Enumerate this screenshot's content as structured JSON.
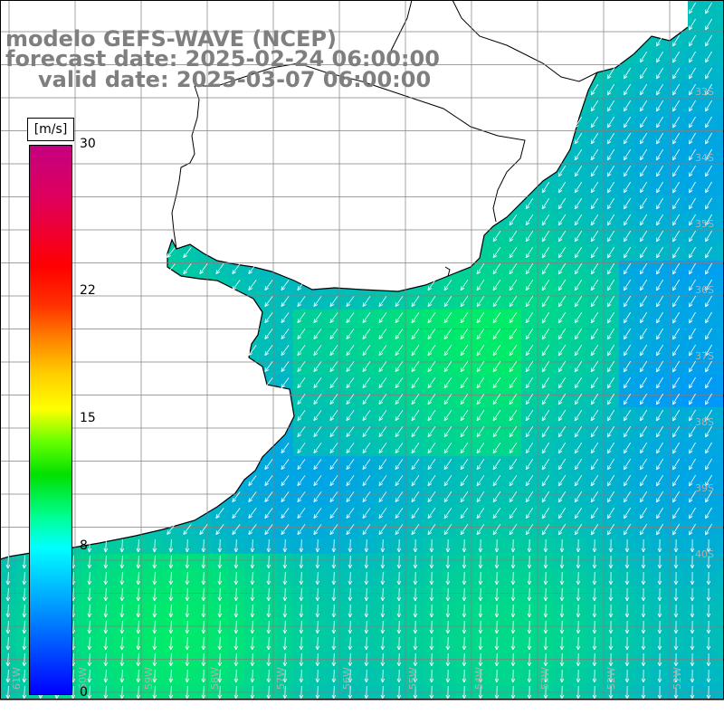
{
  "title": {
    "line1": "modelo GEFS-WAVE (NCEP)",
    "line2": "forecast date: 2025-02-24 06:00:00",
    "line3": "valid date: 2025-03-07 06:00:00"
  },
  "colorbar": {
    "units": "[m/s]",
    "ticks": [
      {
        "value": 30,
        "label": "30"
      },
      {
        "value": 22,
        "label": "22"
      },
      {
        "value": 15,
        "label": "15"
      },
      {
        "value": 8,
        "label": "8"
      },
      {
        "value": 0,
        "label": "0"
      }
    ],
    "min": 0,
    "max": 30
  },
  "map": {
    "lon_labels": [
      "61W",
      "60W",
      "59W",
      "58W",
      "57W",
      "56W",
      "55W",
      "54W",
      "53W",
      "52W",
      "51W"
    ],
    "lat_labels": [
      "33S",
      "34S",
      "35S",
      "36S",
      "37S",
      "38S",
      "39S",
      "40S"
    ],
    "colors": {
      "land": "#ffffff",
      "coast": "#000000",
      "grid": "#808080",
      "arrow": "#ffffff"
    }
  }
}
